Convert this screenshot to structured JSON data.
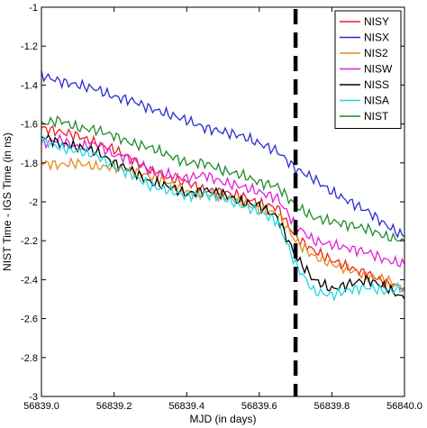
{
  "chart_data": {
    "type": "line",
    "title": "",
    "xlabel": "MJD (in days)",
    "ylabel": "NIST Time - IGS Time (in ns)",
    "xlim": [
      56839.0,
      56840.0
    ],
    "ylim": [
      -3.0,
      -1.0
    ],
    "xticks": [
      56839.0,
      56839.2,
      56839.4,
      56839.6,
      56839.8,
      56840.0
    ],
    "xtick_labels": [
      "56839.0",
      "56839.2",
      "56839.4",
      "56839.6",
      "56839.8",
      "56840.0"
    ],
    "yticks": [
      -3,
      -2.8,
      -2.6,
      -2.4,
      -2.2,
      -2,
      -1.8,
      -1.6,
      -1.4,
      -1.2,
      -1
    ],
    "ytick_labels": [
      "-3",
      "-2.8",
      "-2.6",
      "-2.4",
      "-2.2",
      "-2",
      "-1.8",
      "-1.6",
      "-1.4",
      "-1.2",
      "-1"
    ],
    "grid": false,
    "legend_position": "top-right",
    "annotations": [
      {
        "type": "vertical-dashed-line",
        "x": 56839.7,
        "color": "#000000"
      }
    ],
    "series": [
      {
        "name": "NISY",
        "color": "#e8202a",
        "x": [
          56839.0,
          56839.05,
          56839.1,
          56839.15,
          56839.2,
          56839.25,
          56839.3,
          56839.35,
          56839.4,
          56839.45,
          56839.5,
          56839.55,
          56839.6,
          56839.65,
          56839.7,
          56839.75,
          56839.8,
          56839.85,
          56839.9,
          56839.95,
          56840.0
        ],
        "y": [
          -1.62,
          -1.64,
          -1.66,
          -1.7,
          -1.73,
          -1.78,
          -1.84,
          -1.88,
          -1.9,
          -1.94,
          -1.95,
          -1.97,
          -2.01,
          -2.03,
          -2.18,
          -2.25,
          -2.3,
          -2.34,
          -2.37,
          -2.42,
          -2.44
        ]
      },
      {
        "name": "NISX",
        "color": "#2a2ad0",
        "x": [
          56839.0,
          56839.05,
          56839.1,
          56839.15,
          56839.2,
          56839.25,
          56839.3,
          56839.35,
          56839.4,
          56839.45,
          56839.5,
          56839.55,
          56839.6,
          56839.65,
          56839.7,
          56839.75,
          56839.8,
          56839.85,
          56839.9,
          56839.95,
          56840.0
        ],
        "y": [
          -1.35,
          -1.38,
          -1.4,
          -1.42,
          -1.46,
          -1.48,
          -1.52,
          -1.55,
          -1.58,
          -1.62,
          -1.64,
          -1.66,
          -1.7,
          -1.74,
          -1.83,
          -1.88,
          -1.95,
          -2.0,
          -2.05,
          -2.12,
          -2.18
        ]
      },
      {
        "name": "NIS2",
        "color": "#e88a1a",
        "x": [
          56839.0,
          56839.05,
          56839.1,
          56839.15,
          56839.2,
          56839.25,
          56839.3,
          56839.35,
          56839.4,
          56839.45,
          56839.5,
          56839.55,
          56839.6,
          56839.65,
          56839.7,
          56839.75,
          56839.8,
          56839.85,
          56839.9,
          56839.95,
          56840.0
        ],
        "y": [
          -1.8,
          -1.81,
          -1.8,
          -1.82,
          -1.82,
          -1.84,
          -1.87,
          -1.9,
          -1.95,
          -1.96,
          -1.97,
          -2.0,
          -2.04,
          -2.06,
          -2.2,
          -2.28,
          -2.32,
          -2.35,
          -2.38,
          -2.4,
          -2.45
        ]
      },
      {
        "name": "NISW",
        "color": "#e020d8",
        "x": [
          56839.0,
          56839.05,
          56839.1,
          56839.15,
          56839.2,
          56839.25,
          56839.3,
          56839.35,
          56839.4,
          56839.45,
          56839.5,
          56839.55,
          56839.6,
          56839.65,
          56839.7,
          56839.75,
          56839.8,
          56839.85,
          56839.9,
          56839.95,
          56840.0
        ],
        "y": [
          -1.7,
          -1.68,
          -1.72,
          -1.7,
          -1.76,
          -1.78,
          -1.84,
          -1.86,
          -1.88,
          -1.86,
          -1.9,
          -1.92,
          -1.95,
          -1.98,
          -2.12,
          -2.2,
          -2.22,
          -2.24,
          -2.26,
          -2.3,
          -2.32
        ]
      },
      {
        "name": "NISS",
        "color": "#000000",
        "x": [
          56839.0,
          56839.05,
          56839.1,
          56839.15,
          56839.2,
          56839.25,
          56839.3,
          56839.35,
          56839.4,
          56839.45,
          56839.5,
          56839.55,
          56839.6,
          56839.65,
          56839.7,
          56839.75,
          56839.8,
          56839.85,
          56839.9,
          56839.95,
          56840.0
        ],
        "y": [
          -1.66,
          -1.7,
          -1.72,
          -1.74,
          -1.8,
          -1.84,
          -1.9,
          -1.92,
          -1.96,
          -1.94,
          -1.96,
          -2.0,
          -2.02,
          -2.08,
          -2.28,
          -2.4,
          -2.45,
          -2.42,
          -2.4,
          -2.44,
          -2.5
        ]
      },
      {
        "name": "NISA",
        "color": "#20d8e0",
        "x": [
          56839.0,
          56839.05,
          56839.1,
          56839.15,
          56839.2,
          56839.25,
          56839.3,
          56839.35,
          56839.4,
          56839.45,
          56839.5,
          56839.55,
          56839.6,
          56839.65,
          56839.7,
          56839.75,
          56839.8,
          56839.85,
          56839.9,
          56839.95,
          56840.0
        ],
        "y": [
          -1.68,
          -1.72,
          -1.74,
          -1.76,
          -1.82,
          -1.86,
          -1.92,
          -1.94,
          -1.97,
          -1.96,
          -1.98,
          -2.02,
          -2.05,
          -2.1,
          -2.32,
          -2.46,
          -2.48,
          -2.45,
          -2.44,
          -2.46,
          -2.44
        ]
      },
      {
        "name": "NIST",
        "color": "#1f8a2a",
        "x": [
          56839.0,
          56839.05,
          56839.1,
          56839.15,
          56839.2,
          56839.25,
          56839.3,
          56839.35,
          56839.4,
          56839.45,
          56839.5,
          56839.55,
          56839.6,
          56839.65,
          56839.7,
          56839.75,
          56839.8,
          56839.85,
          56839.9,
          56839.95,
          56840.0
        ],
        "y": [
          -1.6,
          -1.58,
          -1.62,
          -1.63,
          -1.66,
          -1.7,
          -1.72,
          -1.76,
          -1.8,
          -1.8,
          -1.84,
          -1.86,
          -1.9,
          -1.92,
          -2.02,
          -2.08,
          -2.1,
          -2.12,
          -2.14,
          -2.18,
          -2.2
        ]
      }
    ]
  }
}
